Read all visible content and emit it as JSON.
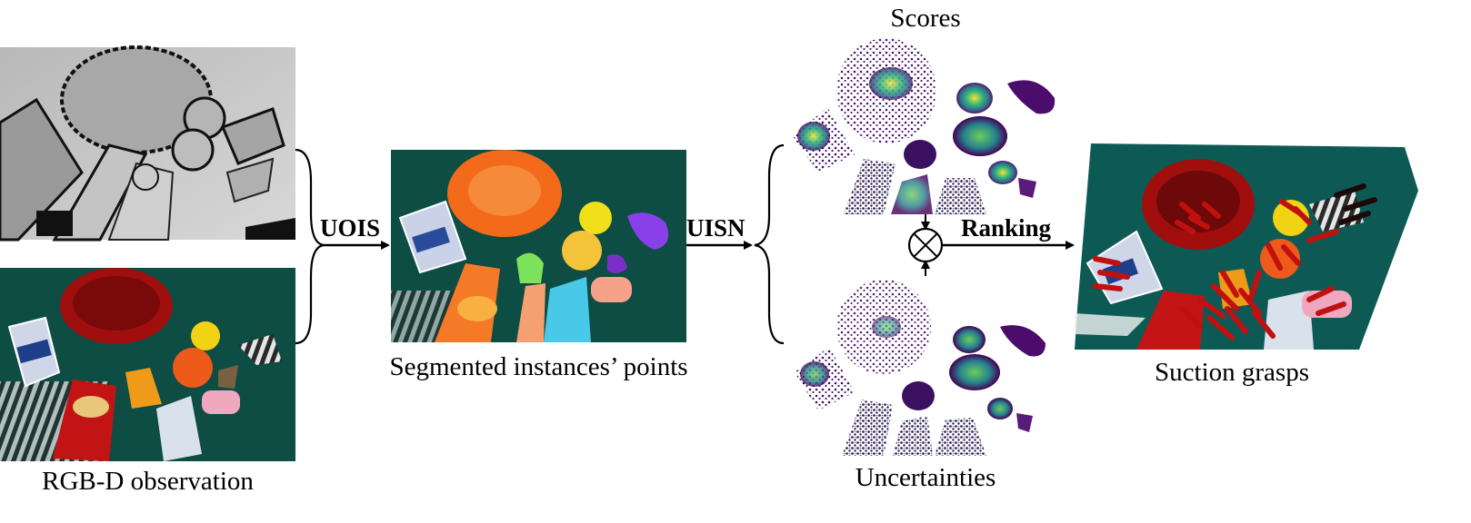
{
  "inputs": {
    "depth_image": "depth-image",
    "rgb_image": "rgb-image",
    "caption": "RGB-D observation"
  },
  "stage1": {
    "label": "UOIS",
    "image": "segmented-instances-image",
    "caption": "Segmented instances’ points"
  },
  "stage2": {
    "label": "UISN",
    "top_caption": "Scores",
    "bottom_caption": "Uncertainties"
  },
  "ranking": {
    "label": "Ranking",
    "operator_icon": "circle-times-icon"
  },
  "output": {
    "image": "suction-grasps-image",
    "caption": "Suction grasps"
  }
}
